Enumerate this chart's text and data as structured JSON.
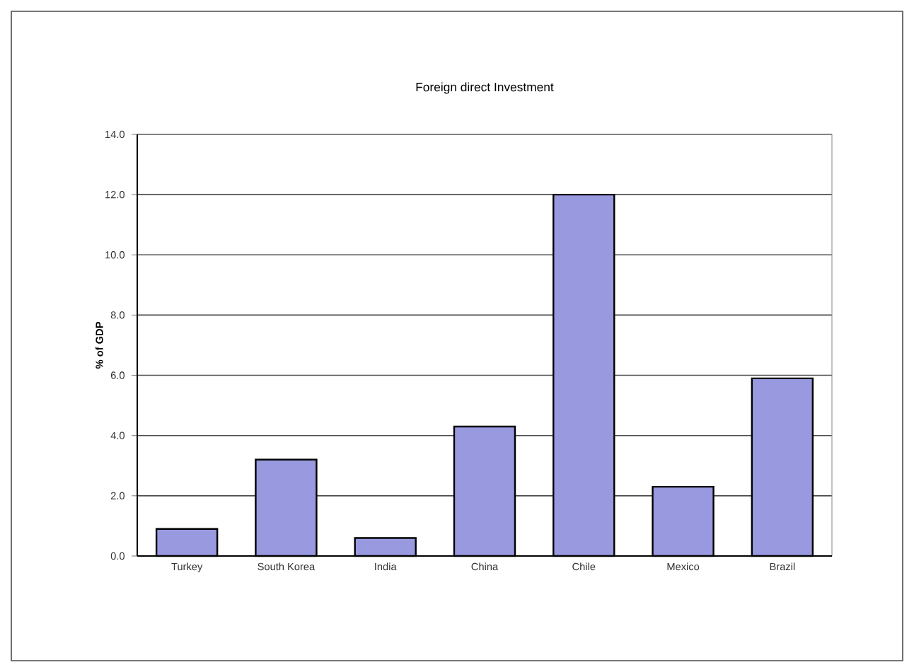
{
  "chart_data": {
    "type": "bar",
    "title": "Foreign direct Investment",
    "ylabel": "% of GDP",
    "categories": [
      "Turkey",
      "South Korea",
      "India",
      "China",
      "Chile",
      "Mexico",
      "Brazil"
    ],
    "values": [
      0.9,
      3.2,
      0.6,
      4.3,
      12.0,
      2.3,
      5.9
    ],
    "color": "#9999e0",
    "ylim": [
      0,
      14
    ],
    "yticks": [
      {
        "value": 0,
        "label": "0.0"
      },
      {
        "value": 2,
        "label": "2.0"
      },
      {
        "value": 4,
        "label": "4.0"
      },
      {
        "value": 6,
        "label": "6.0"
      },
      {
        "value": 8,
        "label": "8.0"
      },
      {
        "value": 10,
        "label": "10.0"
      },
      {
        "value": 12,
        "label": "12.0"
      },
      {
        "value": 14,
        "label": "14.0"
      }
    ],
    "grid": "y"
  }
}
